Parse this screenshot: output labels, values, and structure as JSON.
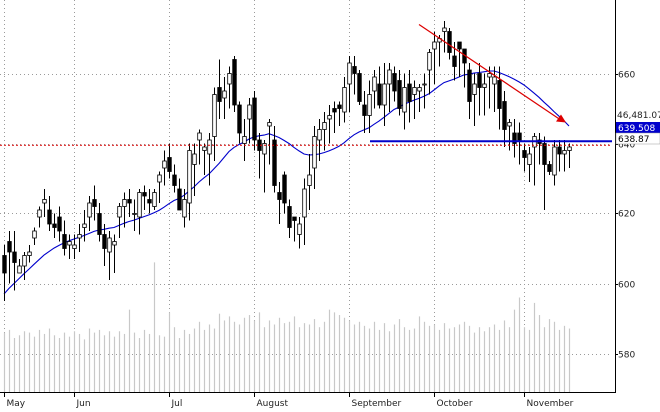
{
  "chart_data": {
    "type": "candlestick",
    "title": "",
    "xlabel": "",
    "ylabel": "",
    "x_ticks": [
      "May",
      "Jun",
      "Jul",
      "August",
      "September",
      "October",
      "November"
    ],
    "y_ticks": [
      580.0,
      600.0,
      620.0,
      640.0,
      660.0
    ],
    "ylim": [
      569,
      681
    ],
    "grid": true,
    "colors": {
      "up_fill": "#ffffff",
      "down_fill": "#000000",
      "candle_outline": "#000000",
      "moving_average": "#0000cc",
      "volume": "#c8c8c8",
      "grid": "#9a9a9a",
      "support_line": "#0000cc",
      "resistance_line": "#dd0000",
      "trend_arrow": "#dd0000",
      "price_tag_bg": "#0000cc",
      "price_tag_text": "#ffffff"
    },
    "trend_arrow": {
      "from": {
        "x": "October",
        "y": 674
      },
      "to": {
        "x": "November",
        "y": 646
      }
    },
    "support_line": {
      "value": 639.5
    },
    "resistance_line": {
      "value": 639.5
    },
    "value_labels": {
      "volume": "46,481.07",
      "current_price": "639.508",
      "last_close": "638.87"
    },
    "series": [
      {
        "name": "",
        "kind": "ohlc",
        "open": [
          608,
          612,
          609,
          603,
          605,
          608,
          613,
          619,
          623,
          621,
          617,
          619,
          614,
          611,
          610,
          613,
          616,
          619,
          624,
          620,
          614,
          609,
          611,
          619,
          622,
          624,
          620,
          619,
          626,
          624,
          622,
          629,
          633,
          636,
          631,
          627,
          619,
          623,
          634,
          641,
          638,
          637,
          642,
          656,
          653,
          657,
          664,
          651,
          640,
          647,
          653,
          641,
          637,
          645,
          641,
          626,
          631,
          622,
          619,
          614,
          619,
          628,
          633,
          641,
          644,
          647,
          650,
          651,
          649,
          657,
          662,
          660,
          651,
          648,
          655,
          657,
          651,
          657,
          660,
          658,
          649,
          657,
          654,
          655,
          657,
          661,
          667,
          669,
          672,
          672,
          665,
          669,
          667,
          661,
          654,
          660,
          656,
          659,
          657,
          658,
          652,
          645,
          643,
          643,
          638,
          634,
          639,
          641,
          640,
          634,
          631,
          639,
          637,
          638
        ],
        "high": [
          611,
          615,
          615,
          607,
          609,
          611,
          616,
          622,
          627,
          625,
          620,
          622,
          618,
          614,
          614,
          617,
          621,
          625,
          628,
          623,
          617,
          615,
          614,
          623,
          626,
          627,
          624,
          627,
          628,
          627,
          627,
          632,
          638,
          640,
          634,
          630,
          627,
          640,
          640,
          644,
          640,
          643,
          656,
          664,
          659,
          662,
          665,
          652,
          647,
          653,
          655,
          643,
          641,
          647,
          645,
          629,
          632,
          624,
          619,
          619,
          630,
          637,
          645,
          647,
          649,
          651,
          652,
          652,
          659,
          665,
          665,
          661,
          655,
          658,
          661,
          662,
          663,
          663,
          662,
          661,
          660,
          661,
          658,
          657,
          660,
          667,
          672,
          671,
          675,
          673,
          669,
          669,
          667,
          663,
          660,
          663,
          660,
          662,
          662,
          662,
          655,
          647,
          647,
          646,
          640,
          639,
          643,
          643,
          642,
          635,
          641,
          641,
          641,
          640
        ],
        "low": [
          595,
          600,
          598,
          603,
          601,
          606,
          611,
          616,
          619,
          615,
          613,
          612,
          608,
          607,
          607,
          609,
          612,
          615,
          618,
          612,
          605,
          601,
          603,
          613,
          616,
          619,
          615,
          614,
          621,
          620,
          621,
          623,
          628,
          630,
          626,
          622,
          616,
          618,
          625,
          634,
          631,
          628,
          635,
          647,
          647,
          650,
          649,
          640,
          635,
          640,
          638,
          630,
          626,
          634,
          626,
          617,
          620,
          613,
          612,
          610,
          611,
          621,
          627,
          635,
          638,
          640,
          643,
          645,
          646,
          649,
          654,
          651,
          643,
          643,
          650,
          650,
          645,
          649,
          652,
          648,
          644,
          646,
          647,
          649,
          650,
          654,
          657,
          662,
          666,
          664,
          658,
          659,
          656,
          647,
          645,
          648,
          648,
          650,
          649,
          644,
          639,
          638,
          636,
          634,
          632,
          629,
          628,
          634,
          621,
          631,
          628,
          632,
          632,
          633
        ],
        "close": [
          603,
          609,
          606,
          605,
          608,
          609,
          615,
          621,
          624,
          617,
          616,
          615,
          610,
          612,
          611,
          614,
          617,
          623,
          622,
          614,
          610,
          613,
          612,
          622,
          624,
          623,
          620,
          626,
          625,
          623,
          626,
          631,
          635,
          632,
          628,
          621,
          624,
          638,
          637,
          643,
          639,
          641,
          654,
          652,
          655,
          660,
          651,
          643,
          642,
          651,
          641,
          638,
          640,
          646,
          628,
          624,
          623,
          616,
          618,
          617,
          627,
          631,
          642,
          644,
          646,
          648,
          649,
          650,
          656,
          663,
          660,
          652,
          648,
          654,
          659,
          651,
          657,
          661,
          655,
          650,
          656,
          652,
          656,
          656,
          657,
          666,
          669,
          670,
          673,
          666,
          662,
          667,
          663,
          652,
          657,
          656,
          657,
          660,
          659,
          650,
          644,
          646,
          640,
          641,
          636,
          637,
          642,
          640,
          634,
          632,
          639,
          637,
          638,
          639
        ]
      },
      {
        "name": "",
        "kind": "moving_average",
        "values": [
          597,
          598.6,
          600,
          601.4,
          602.8,
          604.1,
          605.5,
          606.8,
          608.1,
          609.1,
          610.1,
          610.9,
          611.6,
          612.2,
          612.7,
          613.2,
          613.7,
          614.3,
          614.9,
          615.3,
          615.5,
          615.8,
          616,
          616.6,
          617.2,
          617.7,
          618.1,
          618.6,
          619.1,
          619.6,
          620.2,
          620.9,
          621.8,
          622.8,
          623.7,
          624.3,
          625.2,
          626.4,
          627.6,
          629,
          630.2,
          631.3,
          632.8,
          634.3,
          636,
          637.7,
          638.9,
          639.7,
          640.4,
          641.3,
          641.9,
          642.2,
          642.4,
          642.8,
          642.3,
          641.7,
          640.9,
          640,
          638.9,
          637.9,
          637,
          636.7,
          636.8,
          637,
          637.4,
          637.9,
          638.5,
          639.2,
          640.2,
          641.4,
          642.5,
          643.3,
          643.9,
          644.5,
          645.5,
          646.4,
          647.5,
          648.6,
          649.7,
          650.4,
          651.2,
          651.8,
          652.4,
          652.9,
          653.5,
          654.2,
          655.3,
          656.4,
          657.4,
          657.9,
          658.4,
          659,
          659.6,
          659.8,
          660.1,
          660.3,
          660.5,
          660.7,
          660.7,
          660.3,
          659.7,
          659.1,
          658.4,
          657.6,
          656.7,
          655.6,
          654.4,
          653.2,
          651.8,
          650.5,
          649.1,
          647.8,
          646.5,
          645
        ]
      },
      {
        "name": "",
        "kind": "volume",
        "values": [
          44,
          46,
          40,
          42,
          45,
          44,
          41,
          46,
          43,
          47,
          42,
          40,
          44,
          41,
          45,
          43,
          39,
          47,
          44,
          46,
          42,
          45,
          41,
          45,
          43,
          61,
          44,
          40,
          46,
          43,
          96,
          42,
          41,
          59,
          48,
          40,
          46,
          43,
          47,
          52,
          46,
          50,
          47,
          58,
          53,
          56,
          52,
          50,
          55,
          57,
          53,
          59,
          48,
          53,
          50,
          55,
          51,
          52,
          56,
          48,
          51,
          50,
          54,
          48,
          52,
          61,
          59,
          57,
          55,
          53,
          50,
          52,
          49,
          47,
          52,
          46,
          51,
          45,
          50,
          54,
          48,
          46,
          47,
          56,
          52,
          49,
          50,
          46,
          51,
          47,
          48,
          50,
          52,
          49,
          44,
          48,
          45,
          48,
          50,
          46,
          53,
          48,
          61,
          70,
          48,
          46,
          66,
          57,
          48,
          54,
          52,
          46,
          49,
          47
        ]
      }
    ]
  }
}
